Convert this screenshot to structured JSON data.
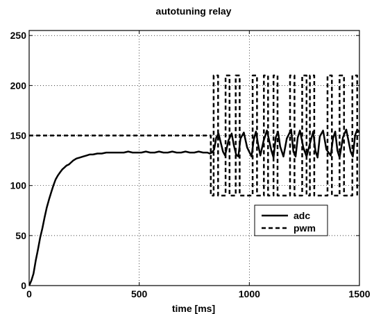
{
  "chart_data": {
    "type": "line",
    "title": "autotuning relay",
    "xlabel": "time [ms]",
    "ylabel": "",
    "xlim": [
      0,
      1500
    ],
    "ylim": [
      0,
      255
    ],
    "xticks": [
      0,
      500,
      1000,
      1500
    ],
    "yticks": [
      0,
      50,
      100,
      150,
      200,
      250
    ],
    "grid": true,
    "legend_position": "lower-right",
    "series": [
      {
        "name": "adc",
        "style": "solid",
        "color": "#000000",
        "x": [
          0,
          10,
          20,
          30,
          40,
          50,
          60,
          70,
          80,
          90,
          100,
          110,
          120,
          130,
          140,
          150,
          160,
          170,
          180,
          190,
          200,
          215,
          230,
          245,
          260,
          275,
          290,
          310,
          330,
          350,
          370,
          390,
          410,
          430,
          450,
          470,
          490,
          510,
          530,
          550,
          570,
          590,
          610,
          630,
          650,
          670,
          690,
          710,
          730,
          750,
          770,
          790,
          810,
          820,
          830,
          840,
          850,
          860,
          870,
          880,
          890,
          905,
          920,
          930,
          940,
          950,
          960,
          975,
          990,
          1010,
          1020,
          1030,
          1040,
          1050,
          1065,
          1080,
          1100,
          1110,
          1120,
          1130,
          1140,
          1155,
          1170,
          1190,
          1200,
          1210,
          1220,
          1230,
          1245,
          1260,
          1280,
          1290,
          1300,
          1310,
          1320,
          1335,
          1350,
          1370,
          1380,
          1390,
          1400,
          1410,
          1425,
          1440,
          1460,
          1470,
          1480,
          1490,
          1500
        ],
        "y": [
          0,
          5,
          12,
          25,
          36,
          48,
          57,
          68,
          78,
          86,
          93,
          100,
          106,
          110,
          113,
          116,
          118,
          120,
          121,
          123,
          125,
          127,
          128,
          129,
          130,
          131,
          131,
          132,
          132,
          133,
          133,
          133,
          133,
          133,
          134,
          133,
          133,
          133,
          134,
          133,
          133,
          134,
          133,
          133,
          134,
          133,
          133,
          134,
          133,
          133,
          134,
          133,
          133,
          132,
          133,
          136,
          148,
          152,
          143,
          134,
          130,
          145,
          152,
          140,
          131,
          129,
          147,
          153,
          138,
          129,
          146,
          154,
          141,
          130,
          145,
          155,
          135,
          128,
          148,
          154,
          139,
          129,
          147,
          156,
          134,
          129,
          148,
          155,
          138,
          129,
          146,
          154,
          135,
          128,
          149,
          155,
          136,
          130,
          147,
          154,
          135,
          128,
          148,
          156,
          134,
          129,
          150,
          156,
          153
        ]
      },
      {
        "name": "pwm",
        "style": "dashed",
        "color": "#000000",
        "steps": [
          [
            0,
            150
          ],
          [
            825,
            150
          ],
          [
            825,
            90
          ],
          [
            838,
            90
          ],
          [
            838,
            210
          ],
          [
            858,
            210
          ],
          [
            858,
            90
          ],
          [
            892,
            90
          ],
          [
            892,
            210
          ],
          [
            910,
            210
          ],
          [
            910,
            90
          ],
          [
            938,
            90
          ],
          [
            938,
            210
          ],
          [
            956,
            210
          ],
          [
            956,
            90
          ],
          [
            1015,
            90
          ],
          [
            1015,
            210
          ],
          [
            1035,
            210
          ],
          [
            1035,
            90
          ],
          [
            1066,
            90
          ],
          [
            1066,
            210
          ],
          [
            1085,
            210
          ],
          [
            1085,
            90
          ],
          [
            1110,
            90
          ],
          [
            1110,
            210
          ],
          [
            1128,
            210
          ],
          [
            1128,
            90
          ],
          [
            1185,
            90
          ],
          [
            1185,
            210
          ],
          [
            1205,
            210
          ],
          [
            1205,
            90
          ],
          [
            1240,
            90
          ],
          [
            1240,
            210
          ],
          [
            1260,
            210
          ],
          [
            1260,
            90
          ],
          [
            1275,
            90
          ],
          [
            1275,
            210
          ],
          [
            1295,
            210
          ],
          [
            1295,
            90
          ],
          [
            1355,
            90
          ],
          [
            1355,
            210
          ],
          [
            1375,
            210
          ],
          [
            1375,
            90
          ],
          [
            1410,
            90
          ],
          [
            1410,
            210
          ],
          [
            1430,
            210
          ],
          [
            1430,
            90
          ],
          [
            1468,
            90
          ],
          [
            1468,
            210
          ],
          [
            1490,
            210
          ],
          [
            1490,
            90
          ],
          [
            1500,
            90
          ]
        ]
      }
    ]
  }
}
